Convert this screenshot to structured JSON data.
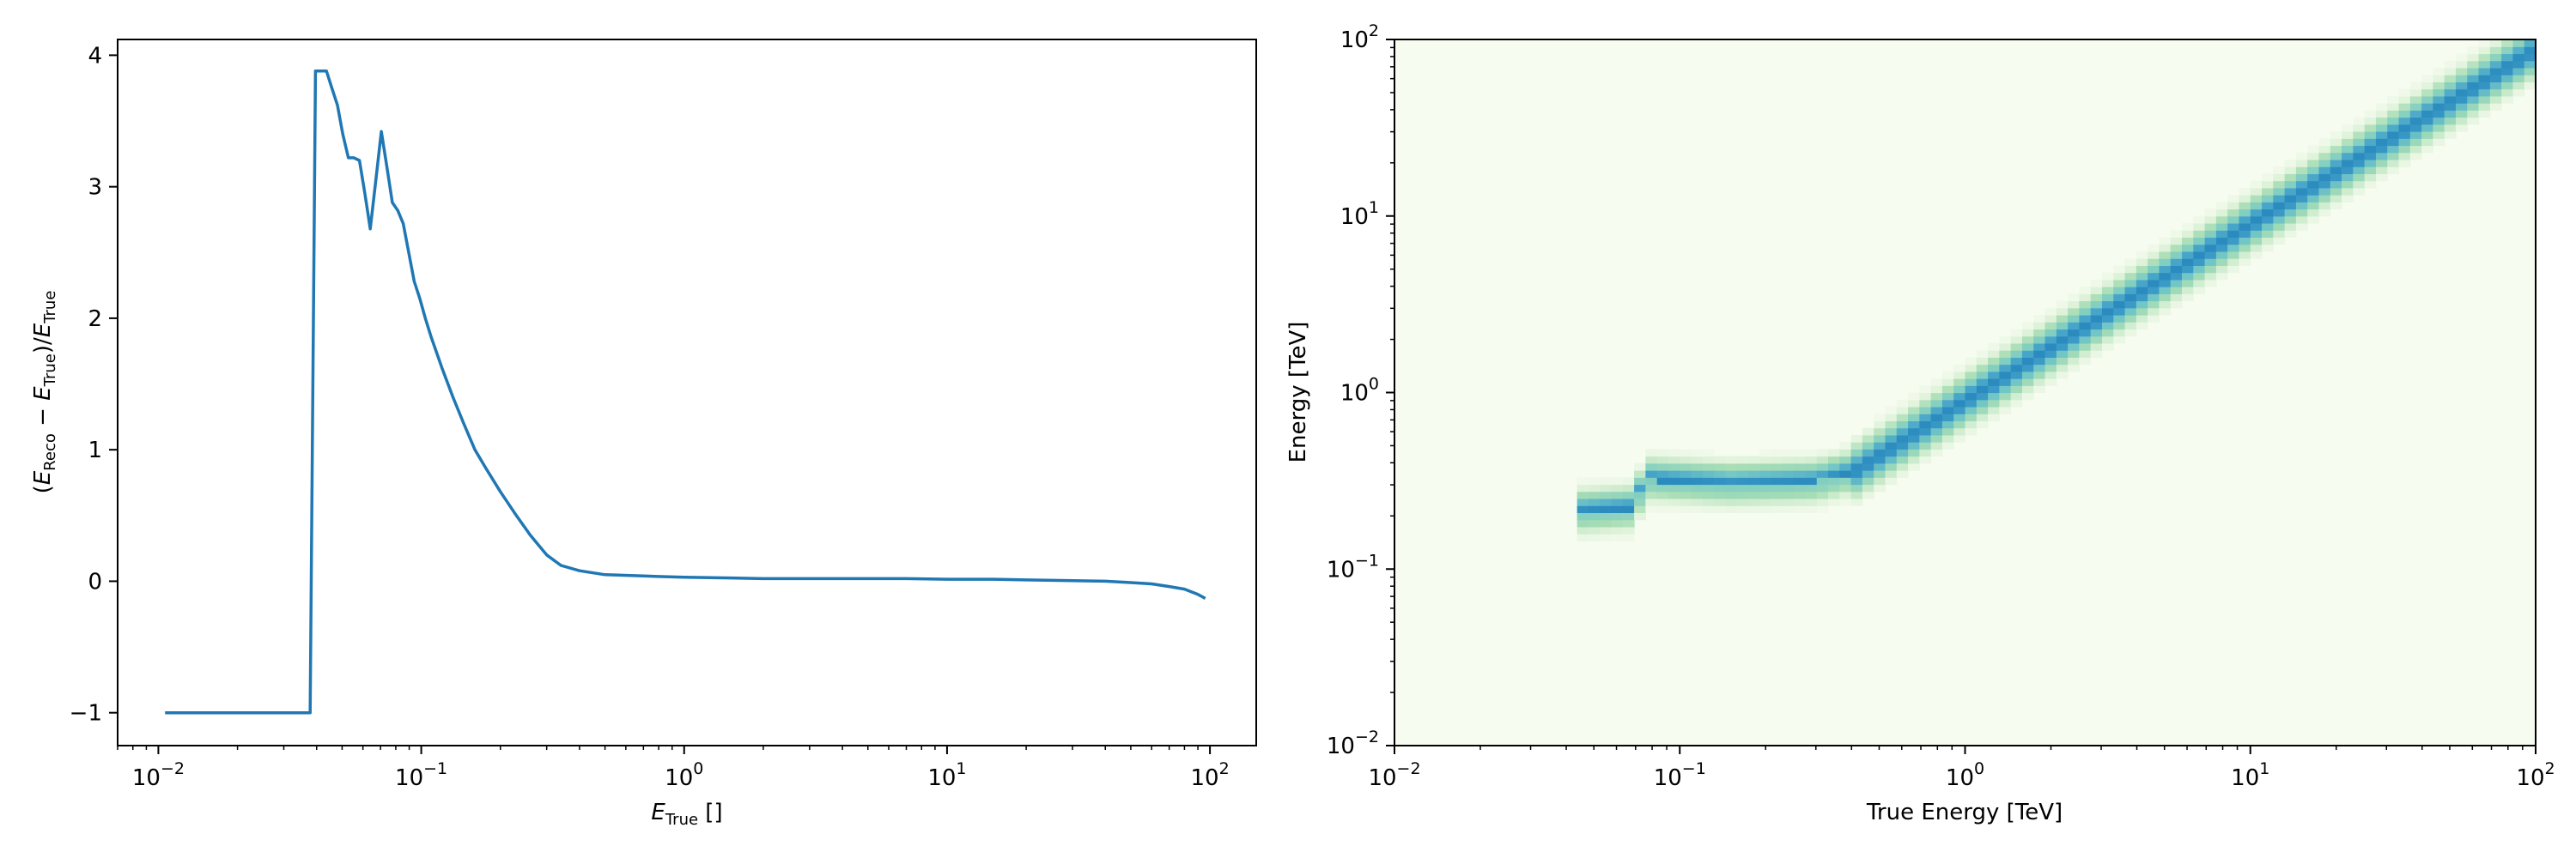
{
  "chart_data": [
    {
      "type": "line",
      "xlabel": "E_True []",
      "ylabel": "(E_Reco − E_True)/E_True",
      "xscale": "log",
      "xlim": [
        0.007,
        150
      ],
      "ylim": [
        -1.25,
        4.12
      ],
      "grid": false,
      "color": "#1f77b4",
      "xticks": [
        {
          "value": 0.01,
          "label": "10",
          "exp": "−2"
        },
        {
          "value": 0.1,
          "label": "10",
          "exp": "−1"
        },
        {
          "value": 1,
          "label": "10",
          "exp": "0"
        },
        {
          "value": 10,
          "label": "10",
          "exp": "1"
        },
        {
          "value": 100,
          "label": "10",
          "exp": "2"
        }
      ],
      "yticks": [
        {
          "value": -1,
          "label": "−1"
        },
        {
          "value": 0,
          "label": "0"
        },
        {
          "value": 1,
          "label": "1"
        },
        {
          "value": 2,
          "label": "2"
        },
        {
          "value": 3,
          "label": "3"
        },
        {
          "value": 4,
          "label": "4"
        }
      ],
      "x": [
        0.0106,
        0.0378,
        0.0396,
        0.0415,
        0.0436,
        0.0457,
        0.048,
        0.0503,
        0.0528,
        0.0554,
        0.0582,
        0.061,
        0.064,
        0.0672,
        0.0705,
        0.074,
        0.0776,
        0.0814,
        0.0854,
        0.0896,
        0.094,
        0.0987,
        0.1036,
        0.109,
        0.12,
        0.132,
        0.145,
        0.16,
        0.176,
        0.2,
        0.23,
        0.26,
        0.3,
        0.34,
        0.4,
        0.5,
        0.7,
        1.0,
        1.5,
        2.0,
        3.0,
        5.0,
        7.0,
        10.0,
        15.0,
        20.0,
        30.0,
        40.0,
        50.0,
        60.0,
        70.0,
        80.0,
        90.0,
        96.0
      ],
      "y": [
        -1.0,
        -1.0,
        3.88,
        3.88,
        3.88,
        3.75,
        3.62,
        3.4,
        3.22,
        3.22,
        3.2,
        2.95,
        2.68,
        3.05,
        3.42,
        3.15,
        2.88,
        2.82,
        2.72,
        2.5,
        2.28,
        2.15,
        2.0,
        1.86,
        1.62,
        1.4,
        1.2,
        1.0,
        0.86,
        0.68,
        0.5,
        0.35,
        0.2,
        0.12,
        0.08,
        0.05,
        0.04,
        0.03,
        0.025,
        0.02,
        0.02,
        0.02,
        0.02,
        0.015,
        0.015,
        0.01,
        0.005,
        0.0,
        -0.01,
        -0.02,
        -0.04,
        -0.06,
        -0.1,
        -0.13
      ]
    },
    {
      "type": "heatmap",
      "xlabel": "True Energy [TeV]",
      "ylabel": "Energy [TeV]",
      "xscale": "log",
      "yscale": "log",
      "xlim": [
        0.01,
        100
      ],
      "ylim": [
        0.01,
        100
      ],
      "colormap": "GnBu",
      "background_color": "#f7fcf0",
      "xticks": [
        {
          "value": 0.01,
          "label": "10",
          "exp": "−2"
        },
        {
          "value": 0.1,
          "label": "10",
          "exp": "−1"
        },
        {
          "value": 1,
          "label": "10",
          "exp": "0"
        },
        {
          "value": 10,
          "label": "10",
          "exp": "1"
        },
        {
          "value": 100,
          "label": "10",
          "exp": "2"
        }
      ],
      "yticks": [
        {
          "value": 0.01,
          "label": "10",
          "exp": "−2"
        },
        {
          "value": 0.1,
          "label": "10",
          "exp": "−1"
        },
        {
          "value": 1,
          "label": "10",
          "exp": "0"
        },
        {
          "value": 10,
          "label": "10",
          "exp": "1"
        },
        {
          "value": 100,
          "label": "10",
          "exp": "2"
        }
      ],
      "ridge": [
        {
          "true_energy": 0.045,
          "reco_energy": 0.21
        },
        {
          "true_energy": 0.07,
          "reco_energy": 0.22
        },
        {
          "true_energy": 0.075,
          "reco_energy": 0.32
        },
        {
          "true_energy": 0.15,
          "reco_energy": 0.3
        },
        {
          "true_energy": 0.3,
          "reco_energy": 0.31
        },
        {
          "true_energy": 0.4,
          "reco_energy": 0.35
        },
        {
          "true_energy": 1.0,
          "reco_energy": 0.9
        },
        {
          "true_energy": 10.0,
          "reco_energy": 9.0
        },
        {
          "true_energy": 100.0,
          "reco_energy": 88.0
        }
      ]
    }
  ]
}
